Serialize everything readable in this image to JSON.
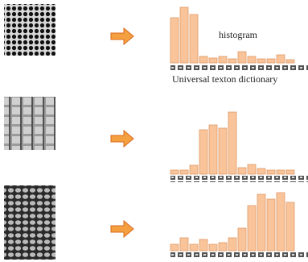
{
  "labels": {
    "histogram": "histogram",
    "dictionary": "Universal texton dictionary"
  },
  "histograms": [
    {
      "values": [
        56,
        69,
        60,
        8,
        6,
        8,
        5,
        14,
        8,
        5,
        5,
        10,
        4
      ]
    },
    {
      "values": [
        5,
        5,
        11,
        55,
        61,
        57,
        77,
        8,
        12,
        7,
        5,
        5,
        5
      ]
    },
    {
      "values": [
        8,
        16,
        8,
        14,
        8,
        10,
        16,
        28,
        56,
        70,
        64,
        72,
        60
      ]
    }
  ],
  "bar_color": "#f9c49a"
}
